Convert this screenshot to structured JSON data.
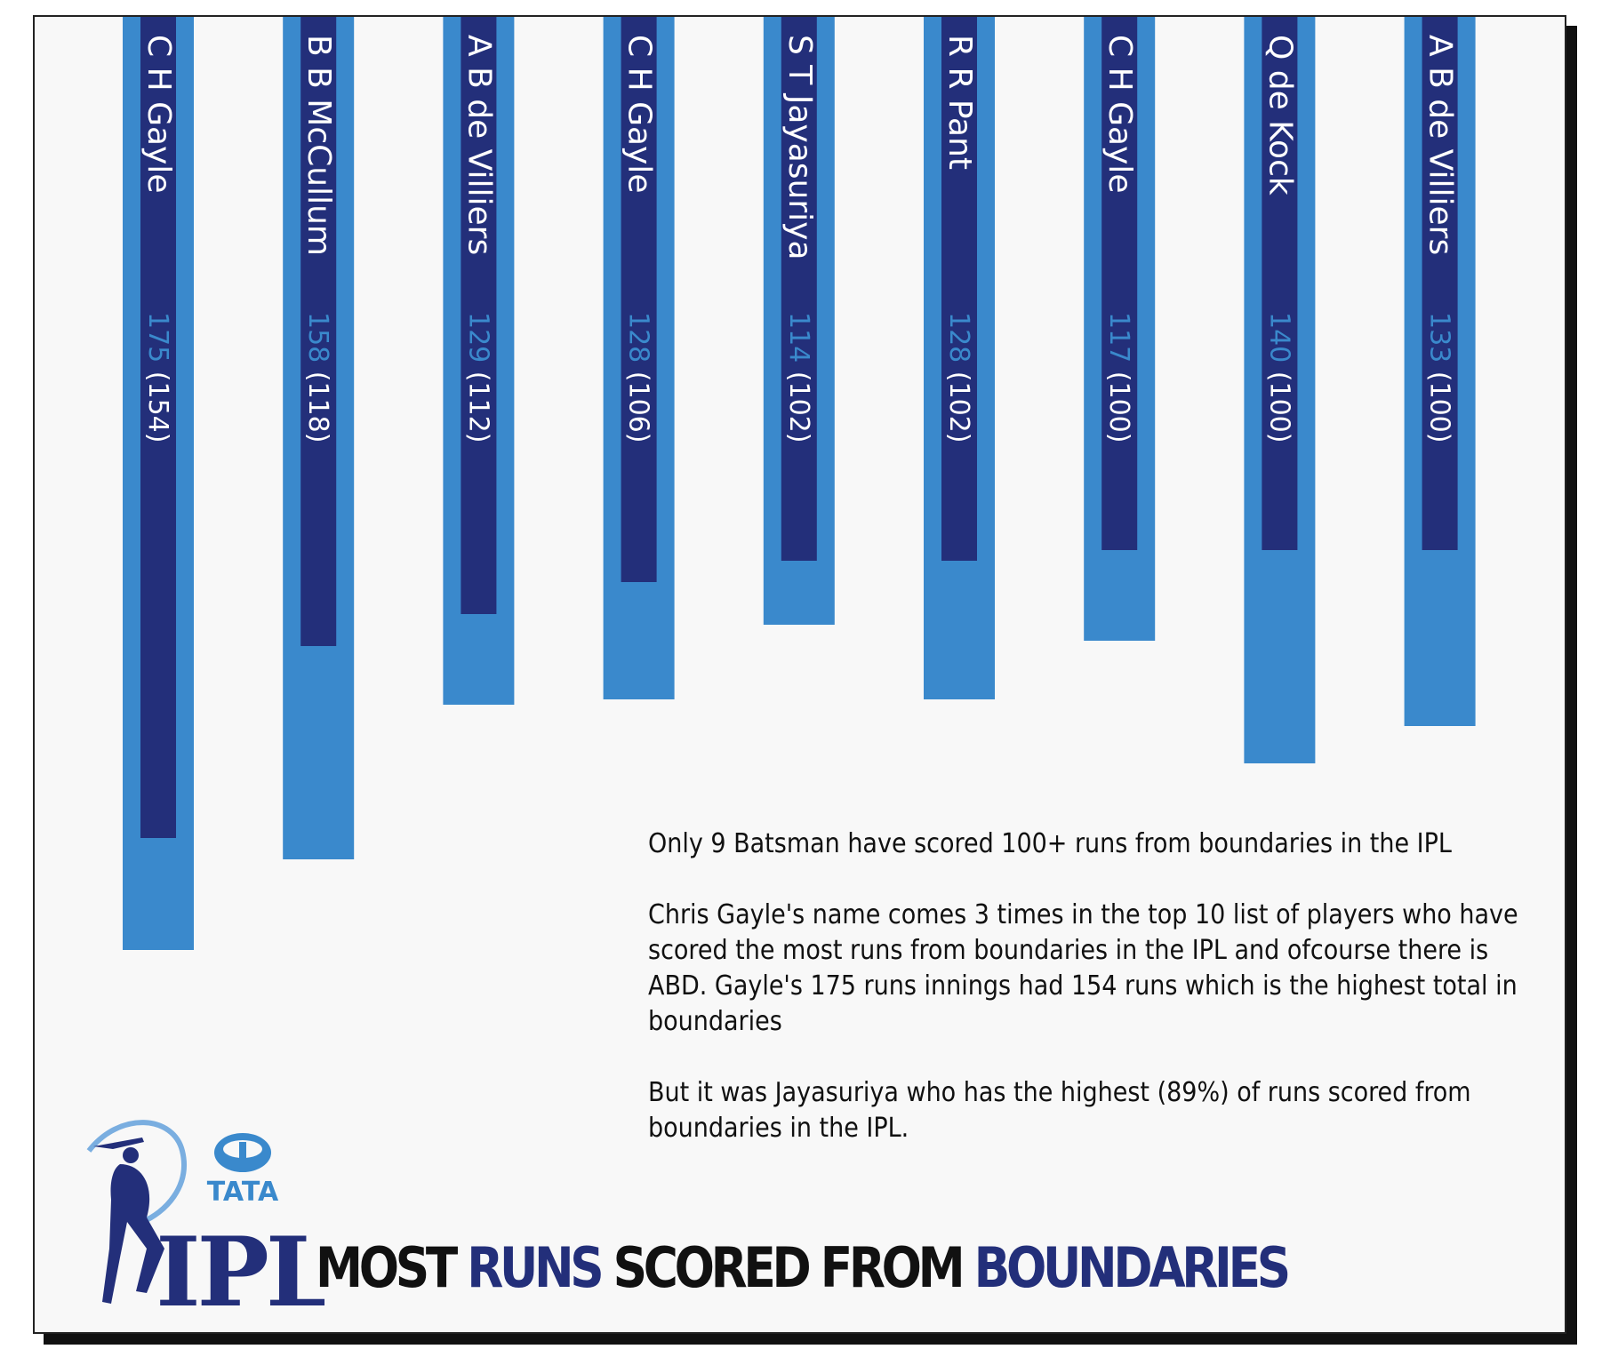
{
  "colors": {
    "outer_bar": "#3a89cc",
    "inner_bar": "#232f7a",
    "runs_text": "#3a89cc",
    "label_text": "#ffffff"
  },
  "chart_data": {
    "type": "bar",
    "title": "",
    "categories": [
      "C H Gayle",
      "B B McCullum",
      "A B de Villiers",
      "C H Gayle",
      "S T Jayasuriya",
      "R R Pant",
      "C H Gayle",
      "Q de Kock",
      "A B de Villiers"
    ],
    "series": [
      {
        "values": [
          175,
          158,
          129,
          128,
          114,
          128,
          117,
          140,
          133
        ]
      },
      {
        "values": [
          154,
          118,
          112,
          106,
          102,
          102,
          100,
          100,
          100
        ]
      }
    ],
    "value_labels": [
      {
        "runs": "175",
        "boundary": "(154)"
      },
      {
        "runs": "158",
        "boundary": "(118)"
      },
      {
        "runs": "129",
        "boundary": "(112)"
      },
      {
        "runs": "128",
        "boundary": "(106)"
      },
      {
        "runs": "114",
        "boundary": "(102)"
      },
      {
        "runs": "128",
        "boundary": "(102)"
      },
      {
        "runs": "117",
        "boundary": "(100)"
      },
      {
        "runs": "140",
        "boundary": "(100)"
      },
      {
        "runs": "133",
        "boundary": "(100)"
      }
    ],
    "ylim": [
      0,
      175
    ],
    "orientation": "vertical-downward",
    "grid": false
  },
  "notes": [
    "Only 9 Batsman have scored 100+ runs from boundaries in the IPL",
    "Chris Gayle's name comes 3 times in the top 10 list of players who have scored the most runs from boundaries in the IPL and ofcourse there is ABD. Gayle's 175 runs innings had 154 runs which is the highest total in boundaries",
    "But it was Jayasuriya who has the highest (89%) of runs scored from boundaries in the IPL."
  ],
  "logo": {
    "brand": "TATA",
    "league": "IPL"
  },
  "heading": {
    "part1": "MOST ",
    "part2": "RUNS",
    "part3": " SCORED FROM ",
    "part4": "BOUNDARIES"
  }
}
